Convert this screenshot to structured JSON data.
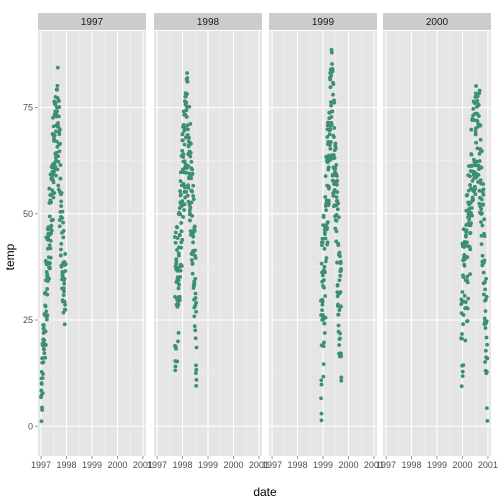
{
  "chart_data": {
    "type": "scatter",
    "xlabel": "date",
    "ylabel": "temp",
    "facet_labels": [
      "1997",
      "1998",
      "1999",
      "2000"
    ],
    "x_ticks": [
      "1997",
      "1998",
      "1999",
      "2000",
      "2001"
    ],
    "x_tick_values": [
      1997,
      1998,
      1999,
      2000,
      2001
    ],
    "y_ticks": [
      0,
      25,
      50,
      75
    ],
    "xlim": [
      1996.88,
      2001.12
    ],
    "ylim": [
      -7,
      93
    ],
    "point_color": "#3d8f73",
    "panel_background": "#e5e5e5",
    "strip_background": "#cccccc",
    "grid": true,
    "facets": [
      {
        "label": "1997",
        "x_start": 1997.0,
        "x_end": 1997.96,
        "summary": [
          {
            "t": 0.0,
            "lo": -3,
            "hi": 12
          },
          {
            "t": 0.12,
            "lo": 10,
            "hi": 30
          },
          {
            "t": 0.25,
            "lo": 25,
            "hi": 50
          },
          {
            "t": 0.4,
            "lo": 38,
            "hi": 62
          },
          {
            "t": 0.55,
            "lo": 55,
            "hi": 80
          },
          {
            "t": 0.68,
            "lo": 60,
            "hi": 86
          },
          {
            "t": 0.8,
            "lo": 40,
            "hi": 65
          },
          {
            "t": 0.92,
            "lo": 25,
            "hi": 48
          },
          {
            "t": 1.0,
            "lo": 18,
            "hi": 40
          }
        ]
      },
      {
        "label": "1998",
        "x_start": 1997.7,
        "x_end": 1998.55,
        "summary": [
          {
            "t": 0.0,
            "lo": 7,
            "hi": 46
          },
          {
            "t": 0.15,
            "lo": 18,
            "hi": 50
          },
          {
            "t": 0.3,
            "lo": 35,
            "hi": 65
          },
          {
            "t": 0.45,
            "lo": 50,
            "hi": 78
          },
          {
            "t": 0.58,
            "lo": 55,
            "hi": 85
          },
          {
            "t": 0.7,
            "lo": 48,
            "hi": 76
          },
          {
            "t": 0.82,
            "lo": 35,
            "hi": 62
          },
          {
            "t": 0.92,
            "lo": 18,
            "hi": 48
          },
          {
            "t": 1.0,
            "lo": 7,
            "hi": 35
          }
        ]
      },
      {
        "label": "1999",
        "x_start": 1998.92,
        "x_end": 1999.72,
        "summary": [
          {
            "t": 0.0,
            "lo": -2,
            "hi": 40
          },
          {
            "t": 0.12,
            "lo": 10,
            "hi": 50
          },
          {
            "t": 0.25,
            "lo": 30,
            "hi": 65
          },
          {
            "t": 0.4,
            "lo": 55,
            "hi": 80
          },
          {
            "t": 0.52,
            "lo": 60,
            "hi": 90
          },
          {
            "t": 0.65,
            "lo": 50,
            "hi": 78
          },
          {
            "t": 0.78,
            "lo": 35,
            "hi": 62
          },
          {
            "t": 0.9,
            "lo": 15,
            "hi": 48
          },
          {
            "t": 1.0,
            "lo": 7,
            "hi": 35
          }
        ]
      },
      {
        "label": "2000",
        "x_start": 1999.95,
        "x_end": 2000.98,
        "summary": [
          {
            "t": 0.0,
            "lo": 5,
            "hi": 40
          },
          {
            "t": 0.15,
            "lo": 15,
            "hi": 50
          },
          {
            "t": 0.3,
            "lo": 30,
            "hi": 62
          },
          {
            "t": 0.45,
            "lo": 50,
            "hi": 76
          },
          {
            "t": 0.58,
            "lo": 55,
            "hi": 82
          },
          {
            "t": 0.7,
            "lo": 50,
            "hi": 80
          },
          {
            "t": 0.82,
            "lo": 35,
            "hi": 62
          },
          {
            "t": 0.92,
            "lo": 10,
            "hi": 40
          },
          {
            "t": 1.0,
            "lo": -1,
            "hi": 30
          }
        ]
      }
    ]
  }
}
